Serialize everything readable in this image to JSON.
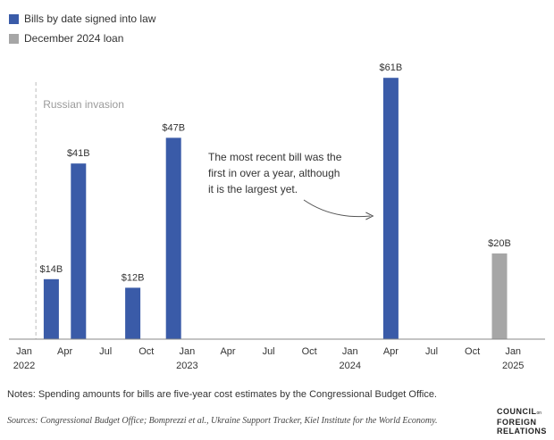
{
  "legend": [
    {
      "label": "Bills by date signed into law",
      "color": "#3a5ba8"
    },
    {
      "label": "December 2024 loan",
      "color": "#a6a6a6"
    }
  ],
  "chart_data": {
    "type": "bar",
    "series": [
      {
        "name": "Bills by date signed into law",
        "color": "#3a5ba8",
        "points": [
          {
            "date": "2022-03",
            "value": 14,
            "label": "$14B"
          },
          {
            "date": "2022-05",
            "value": 41,
            "label": "$41B"
          },
          {
            "date": "2022-09",
            "value": 12,
            "label": "$12B"
          },
          {
            "date": "2022-12",
            "value": 47,
            "label": "$47B"
          },
          {
            "date": "2024-04",
            "value": 61,
            "label": "$61B"
          }
        ]
      },
      {
        "name": "December 2024 loan",
        "color": "#a6a6a6",
        "points": [
          {
            "date": "2024-12",
            "value": 20,
            "label": "$20B"
          }
        ]
      }
    ],
    "x_ticks": [
      {
        "date": "2022-01",
        "line1": "Jan",
        "line2": "2022"
      },
      {
        "date": "2022-04",
        "line1": "Apr",
        "line2": ""
      },
      {
        "date": "2022-07",
        "line1": "Jul",
        "line2": ""
      },
      {
        "date": "2022-10",
        "line1": "Oct",
        "line2": ""
      },
      {
        "date": "2023-01",
        "line1": "Jan",
        "line2": "2023"
      },
      {
        "date": "2023-04",
        "line1": "Apr",
        "line2": ""
      },
      {
        "date": "2023-07",
        "line1": "Jul",
        "line2": ""
      },
      {
        "date": "2023-10",
        "line1": "Oct",
        "line2": ""
      },
      {
        "date": "2024-01",
        "line1": "Jan",
        "line2": "2024"
      },
      {
        "date": "2024-04",
        "line1": "Apr",
        "line2": ""
      },
      {
        "date": "2024-07",
        "line1": "Jul",
        "line2": ""
      },
      {
        "date": "2024-10",
        "line1": "Oct",
        "line2": ""
      },
      {
        "date": "2025-01",
        "line1": "Jan",
        "line2": "2025"
      }
    ],
    "ylim": [
      0,
      70
    ],
    "grid": false,
    "reference_line": {
      "date": "2022-02",
      "label": "Russian invasion"
    },
    "annotation": {
      "lines": [
        "The most recent bill was the",
        "first in over a year, although",
        "it is the largest yet."
      ],
      "points_to": "2024-04"
    }
  },
  "notes": "Notes: Spending amounts for bills are five-year cost estimates by the Congressional Budget Office.",
  "sources": "Sources: Congressional Budget Office; Bomprezzi et al., Ukraine Support Tracker, Kiel Institute for the World Economy.",
  "logo": {
    "line1": "COUNCIL",
    "small": "on",
    "line2": "FOREIGN",
    "line3": "RELATIONS"
  }
}
